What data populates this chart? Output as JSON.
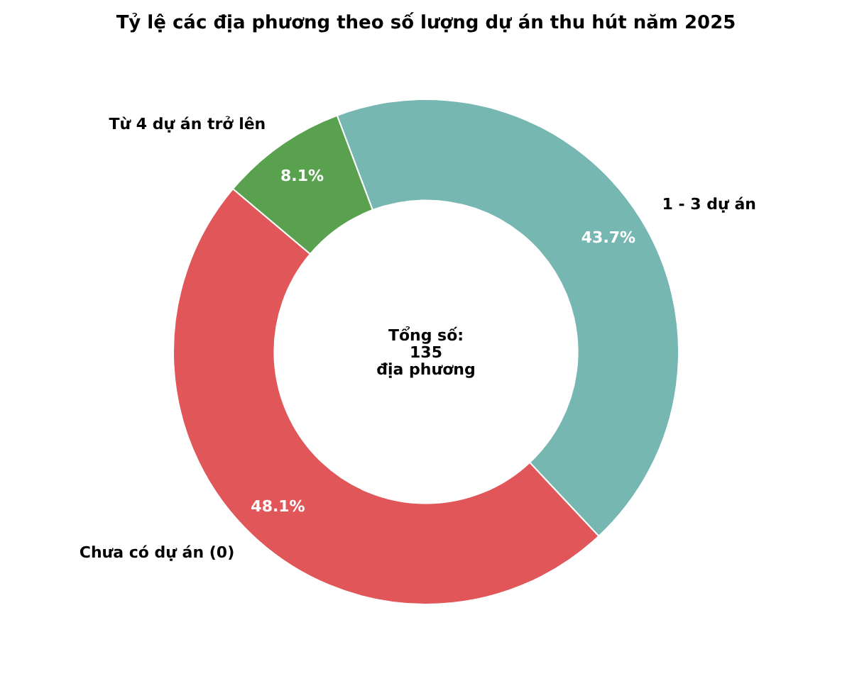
{
  "chart_data": {
    "type": "donut",
    "title": "Tỷ lệ các địa phương theo số lượng dự án thu hút năm 2025",
    "categories": [
      "1 - 3 dự án",
      "Chưa có dự án (0)",
      "Từ 4 dự án trở lên"
    ],
    "values": [
      43.7,
      48.1,
      8.1
    ],
    "colors": [
      "#76b7b2",
      "#e15759",
      "#59a14f"
    ],
    "value_labels": [
      "43.7%",
      "48.1%",
      "8.1%"
    ],
    "annotations": [
      "Tổng số:\n135\nđịa phương"
    ]
  }
}
